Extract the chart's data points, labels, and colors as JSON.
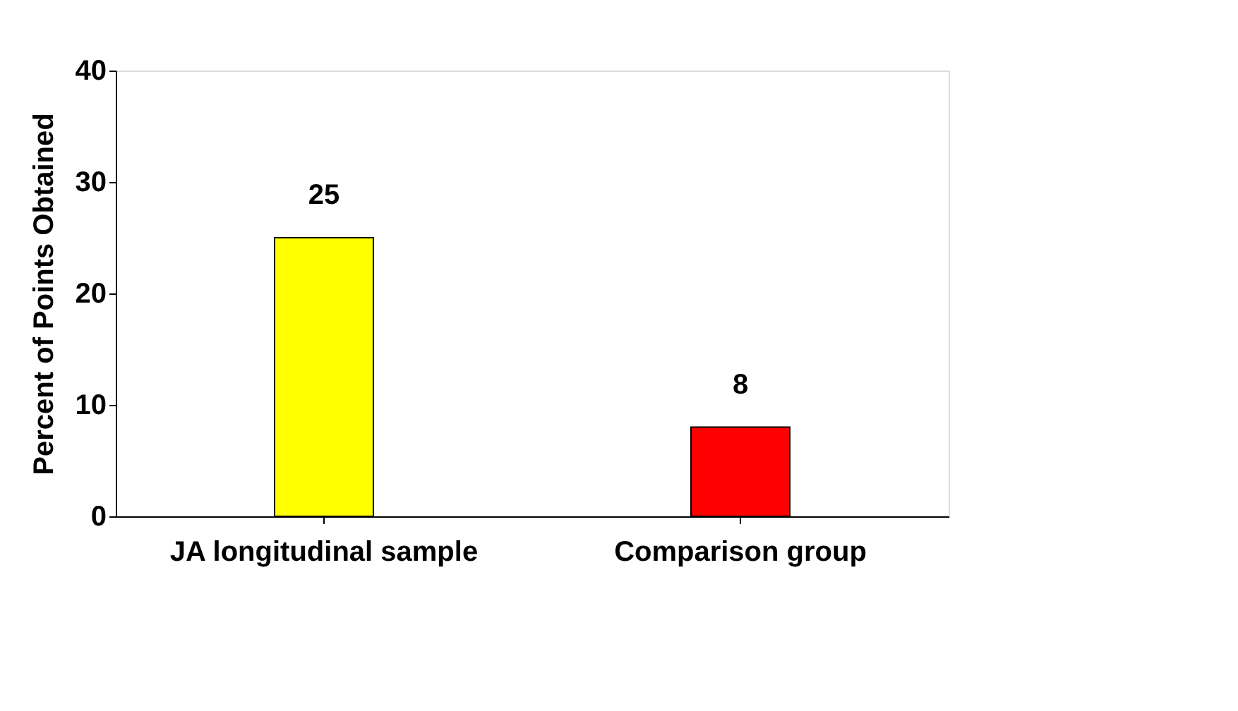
{
  "chart_data": {
    "type": "bar",
    "ylabel": "Percent of Points Obtained",
    "categories": [
      "JA longitudinal sample",
      "Comparison group"
    ],
    "values": [
      25,
      8
    ],
    "colors": [
      "#ffff00",
      "#ff0000"
    ],
    "ylim": [
      0,
      40
    ],
    "yticks": [
      0,
      10,
      20,
      30,
      40
    ],
    "grid": false,
    "data_labels": true
  }
}
